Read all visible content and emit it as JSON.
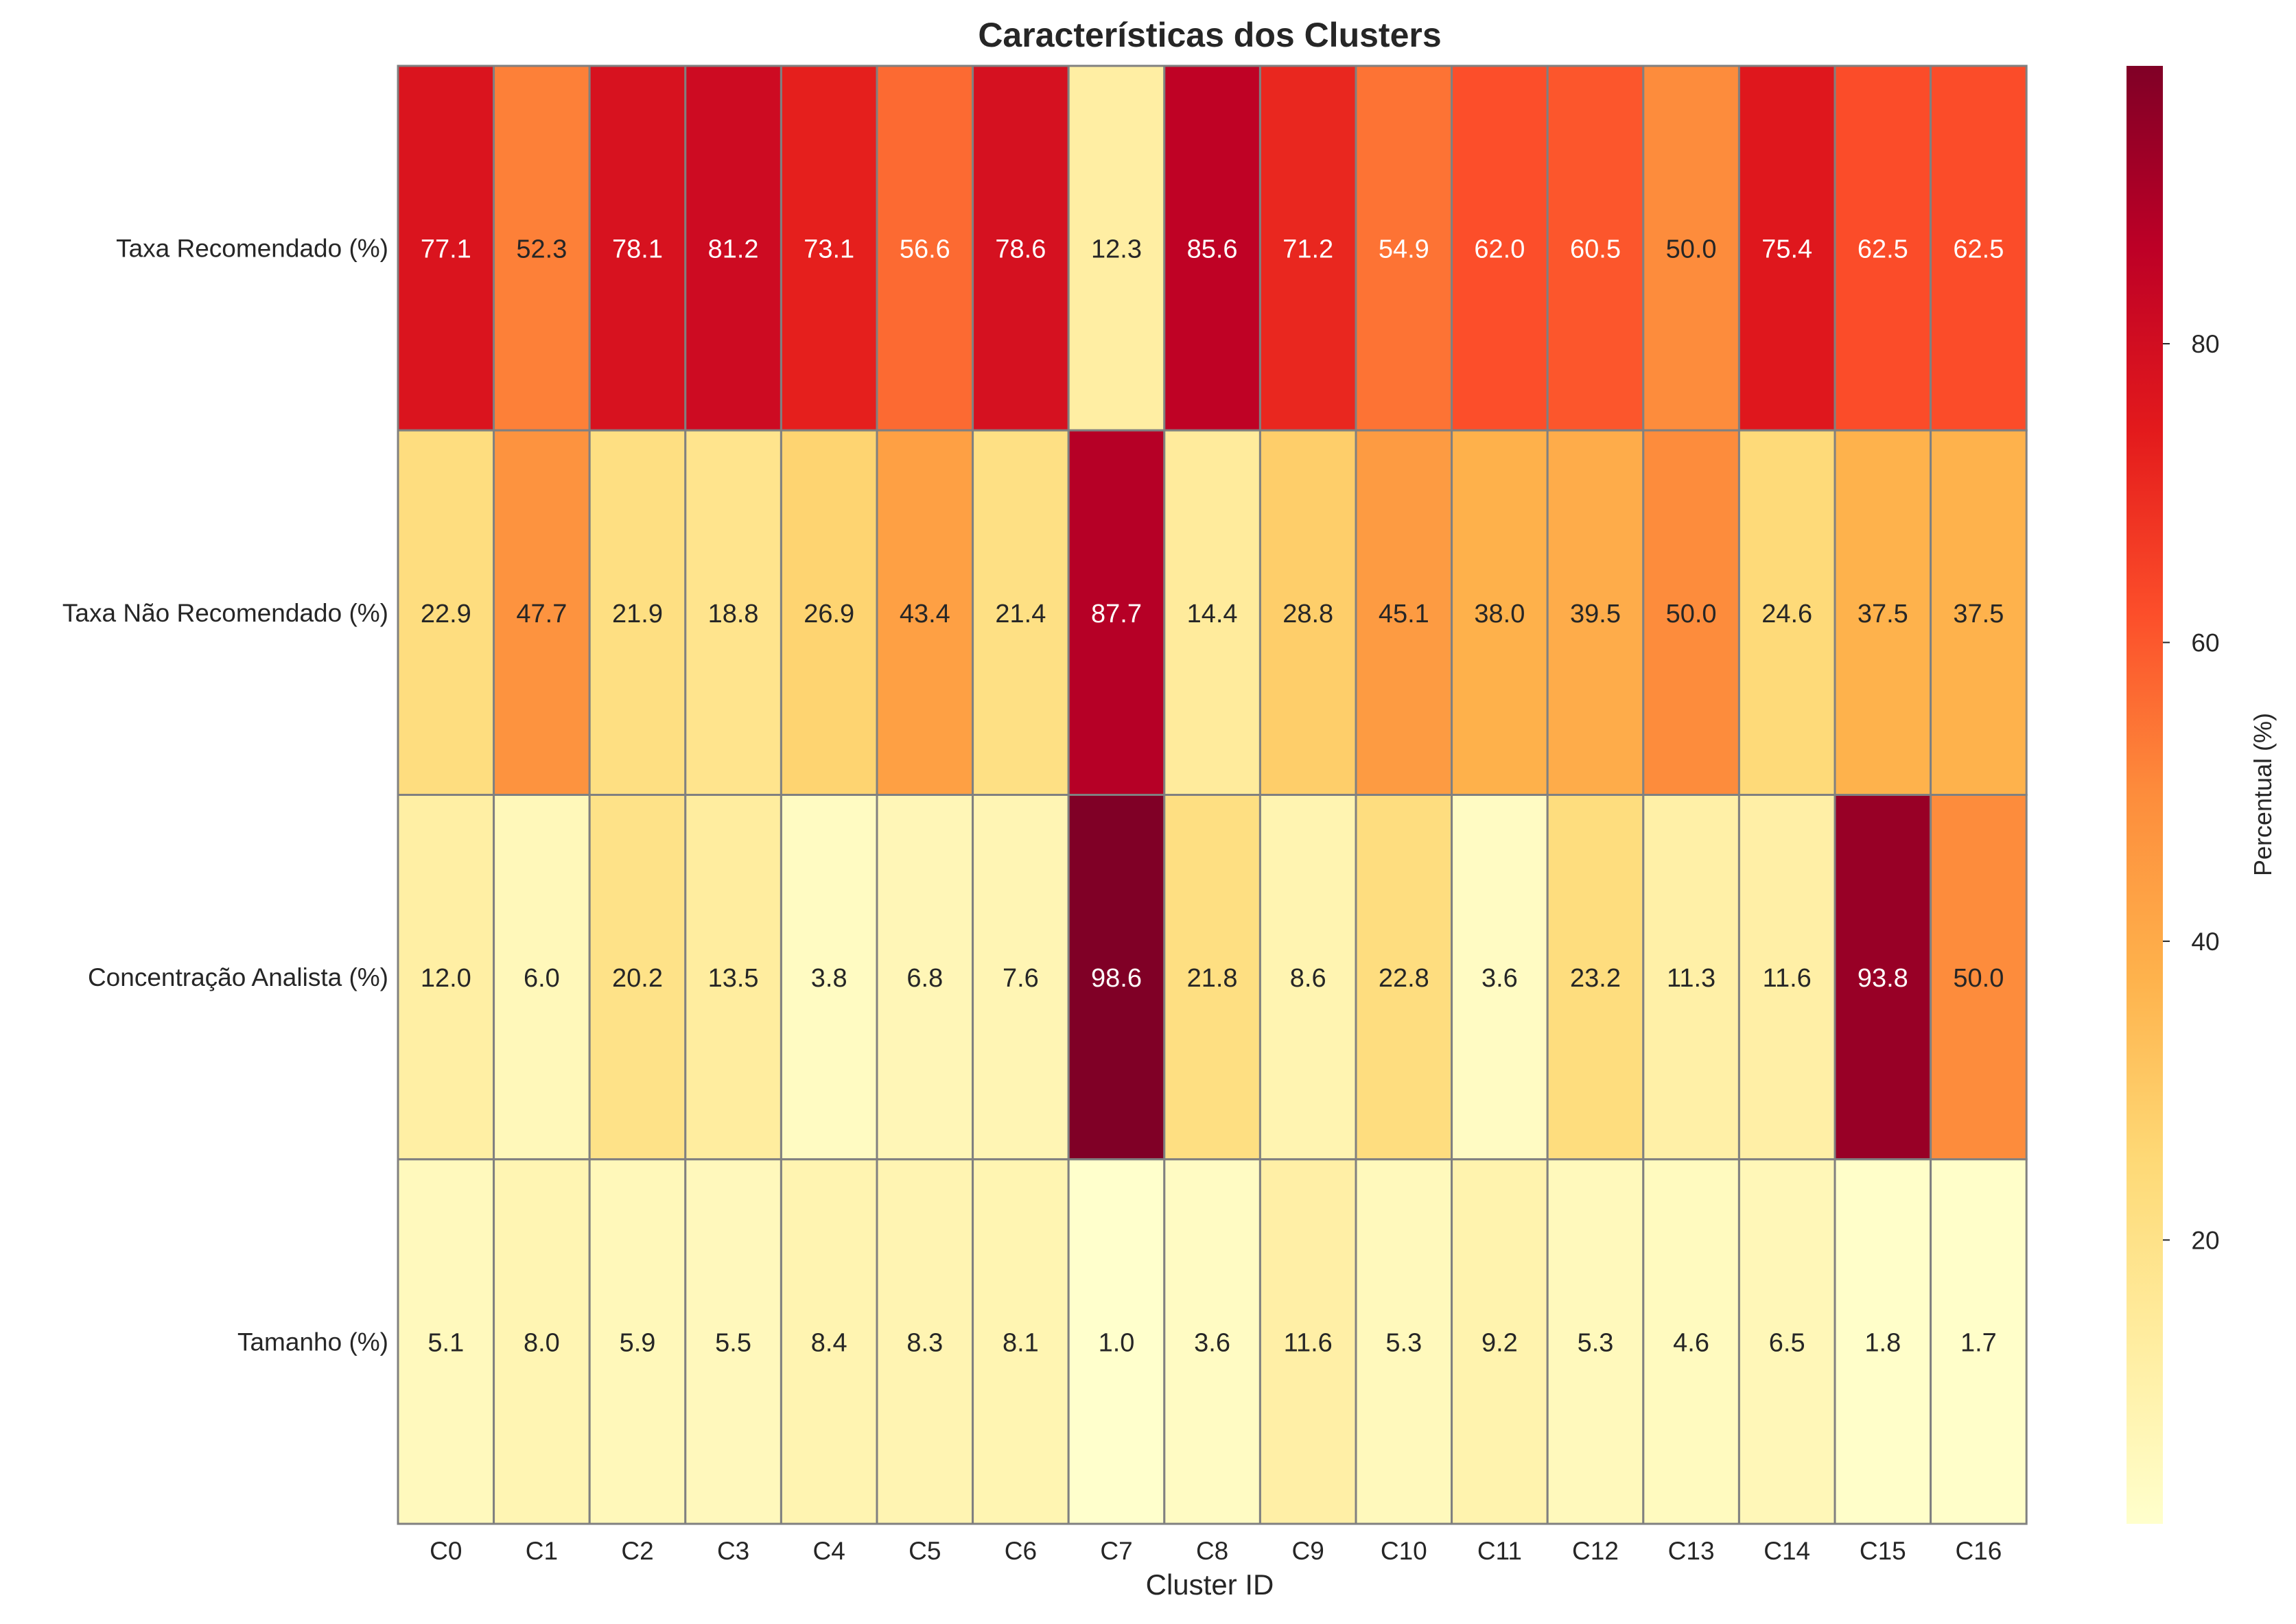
{
  "chart_data": {
    "type": "heatmap",
    "title": "Características dos Clusters",
    "xlabel": "Cluster ID",
    "ylabel": "",
    "colorbar": {
      "label": "Percentual (%)",
      "range": [
        1.0,
        98.6
      ],
      "ticks": [
        20,
        40,
        60,
        80
      ],
      "colormap": "YlOrRd"
    },
    "x_categories": [
      "C0",
      "C1",
      "C2",
      "C3",
      "C4",
      "C5",
      "C6",
      "C7",
      "C8",
      "C9",
      "C10",
      "C11",
      "C12",
      "C13",
      "C14",
      "C15",
      "C16"
    ],
    "y_categories": [
      "Taxa Recomendado (%)",
      "Taxa Não Recomendado (%)",
      "Concentração Analista (%)",
      "Tamanho (%)"
    ],
    "values": [
      [
        77.1,
        52.3,
        78.1,
        81.2,
        73.1,
        56.6,
        78.6,
        12.3,
        85.6,
        71.2,
        54.9,
        62.0,
        60.5,
        50.0,
        75.4,
        62.5,
        62.5
      ],
      [
        22.9,
        47.7,
        21.9,
        18.8,
        26.9,
        43.4,
        21.4,
        87.7,
        14.4,
        28.8,
        45.1,
        38.0,
        39.5,
        50.0,
        24.6,
        37.5,
        37.5
      ],
      [
        12.0,
        6.0,
        20.2,
        13.5,
        3.8,
        6.8,
        7.6,
        98.6,
        21.8,
        8.6,
        22.8,
        3.6,
        23.2,
        11.3,
        11.6,
        93.8,
        50.0
      ],
      [
        5.1,
        8.0,
        5.9,
        5.5,
        8.4,
        8.3,
        8.1,
        1.0,
        3.6,
        11.6,
        5.3,
        9.2,
        5.3,
        4.6,
        6.5,
        1.8,
        1.7
      ]
    ],
    "value_format": "0.0",
    "grid": false
  }
}
